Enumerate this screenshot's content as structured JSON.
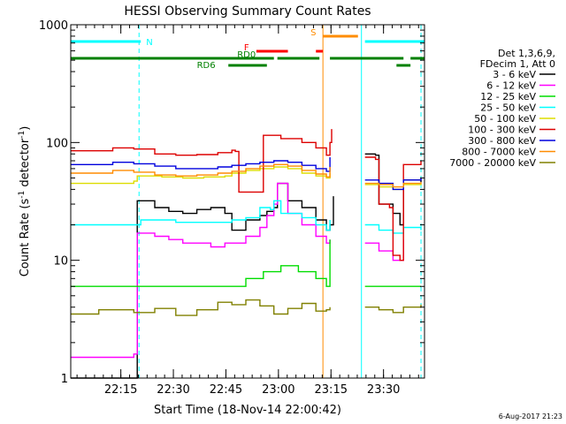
{
  "chart_data": {
    "type": "line",
    "title": "HESSI Observing Summary Count Rates",
    "xlabel": "Start Time (18-Nov-14 22:00:42)",
    "ylabel": "Count Rate (s^-1 detector^-1)",
    "ylabel_parts": {
      "a": "Count Rate (s",
      "b": "-1",
      "c": " detector",
      "d": "-1",
      "e": ")"
    },
    "y_scale": "log",
    "ylim": [
      1,
      1000
    ],
    "xlim_minutes": [
      0,
      101
    ],
    "x_tick_minutes": [
      14.3,
      29.3,
      44.3,
      59.3,
      74.3,
      89.3
    ],
    "x_tick_labels": [
      "22:15",
      "22:30",
      "22:45",
      "23:00",
      "23:15",
      "23:30"
    ],
    "y_tick_values": [
      1,
      10,
      100,
      1000
    ],
    "y_tick_labels": [
      "1",
      "10",
      "100",
      "1000"
    ],
    "legend_header": [
      "Det 1,3,6,9,",
      "FDecim 1, Att 0"
    ],
    "series": [
      {
        "name": "3 - 6 keV",
        "color": "#000000",
        "values": [
          [
            0,
            1
          ],
          [
            18,
            1
          ],
          [
            19,
            32
          ],
          [
            24,
            28
          ],
          [
            28,
            26
          ],
          [
            32,
            25
          ],
          [
            36,
            27
          ],
          [
            40,
            28
          ],
          [
            44,
            25
          ],
          [
            46,
            18
          ],
          [
            49,
            18
          ],
          [
            50,
            22
          ],
          [
            54,
            24
          ],
          [
            56,
            26
          ],
          [
            58,
            28
          ],
          [
            59,
            45
          ],
          [
            62,
            32
          ],
          [
            66,
            28
          ],
          [
            70,
            22
          ],
          [
            73,
            18
          ],
          [
            74,
            20
          ],
          [
            75,
            35
          ]
        ]
      },
      {
        "name": "6 - 12 keV",
        "color": "#ff00ff",
        "values": [
          [
            0,
            1.5
          ],
          [
            18,
            1.6
          ],
          [
            19,
            17
          ],
          [
            24,
            16
          ],
          [
            28,
            15
          ],
          [
            32,
            14
          ],
          [
            36,
            14
          ],
          [
            40,
            13
          ],
          [
            44,
            14
          ],
          [
            46,
            14
          ],
          [
            50,
            16
          ],
          [
            54,
            19
          ],
          [
            56,
            24
          ],
          [
            58,
            30
          ],
          [
            59,
            45
          ],
          [
            62,
            25
          ],
          [
            66,
            20
          ],
          [
            70,
            16
          ],
          [
            73,
            14
          ],
          [
            74,
            15
          ]
        ]
      },
      {
        "name": "12 - 25 keV",
        "color": "#00dd00",
        "values": [
          [
            0,
            6
          ],
          [
            18,
            6
          ],
          [
            20,
            6
          ],
          [
            30,
            6
          ],
          [
            40,
            6
          ],
          [
            46,
            6
          ],
          [
            50,
            7
          ],
          [
            55,
            8
          ],
          [
            60,
            9
          ],
          [
            65,
            8
          ],
          [
            70,
            7
          ],
          [
            73,
            6
          ],
          [
            74,
            15
          ]
        ]
      },
      {
        "name": "25 - 50 keV",
        "color": "#00ffff",
        "values": [
          [
            0,
            20
          ],
          [
            18,
            20
          ],
          [
            20,
            22
          ],
          [
            30,
            21
          ],
          [
            40,
            21
          ],
          [
            46,
            22
          ],
          [
            50,
            23
          ],
          [
            54,
            28
          ],
          [
            57,
            27
          ],
          [
            58,
            32
          ],
          [
            60,
            25
          ],
          [
            66,
            23
          ],
          [
            70,
            20
          ],
          [
            73,
            18
          ],
          [
            74,
            22
          ]
        ]
      },
      {
        "name": "50 - 100 keV",
        "color": "#dddd00",
        "values": [
          [
            0,
            45
          ],
          [
            18,
            47
          ],
          [
            19,
            52
          ],
          [
            26,
            51
          ],
          [
            32,
            50
          ],
          [
            38,
            51
          ],
          [
            44,
            52
          ],
          [
            46,
            55
          ],
          [
            50,
            58
          ],
          [
            54,
            60
          ],
          [
            58,
            62
          ],
          [
            62,
            60
          ],
          [
            66,
            55
          ],
          [
            70,
            52
          ],
          [
            73,
            50
          ],
          [
            74,
            55
          ]
        ]
      },
      {
        "name": "100 - 300 keV",
        "color": "#dd0000",
        "values": [
          [
            0,
            85
          ],
          [
            12,
            90
          ],
          [
            18,
            88
          ],
          [
            24,
            80
          ],
          [
            30,
            78
          ],
          [
            36,
            79
          ],
          [
            42,
            82
          ],
          [
            46,
            86
          ],
          [
            47,
            84
          ],
          [
            48,
            38
          ],
          [
            54,
            38
          ],
          [
            55,
            115
          ],
          [
            60,
            108
          ],
          [
            66,
            100
          ],
          [
            70,
            90
          ],
          [
            73,
            78
          ],
          [
            74,
            100
          ],
          [
            74.5,
            130
          ]
        ]
      },
      {
        "name": "300 - 800 keV",
        "color": "#0000dd",
        "values": [
          [
            0,
            65
          ],
          [
            12,
            68
          ],
          [
            18,
            66
          ],
          [
            24,
            63
          ],
          [
            30,
            60
          ],
          [
            36,
            60
          ],
          [
            42,
            62
          ],
          [
            46,
            64
          ],
          [
            50,
            66
          ],
          [
            54,
            68
          ],
          [
            58,
            70
          ],
          [
            62,
            68
          ],
          [
            66,
            64
          ],
          [
            70,
            60
          ],
          [
            73,
            57
          ],
          [
            74,
            75
          ]
        ]
      },
      {
        "name": "800 - 7000 keV",
        "color": "#ff8c00",
        "values": [
          [
            0,
            55
          ],
          [
            12,
            58
          ],
          [
            18,
            56
          ],
          [
            24,
            53
          ],
          [
            30,
            52
          ],
          [
            36,
            53
          ],
          [
            42,
            55
          ],
          [
            46,
            57
          ],
          [
            50,
            60
          ],
          [
            54,
            63
          ],
          [
            58,
            65
          ],
          [
            62,
            63
          ],
          [
            66,
            58
          ],
          [
            70,
            54
          ],
          [
            73,
            51
          ],
          [
            74,
            62
          ]
        ]
      },
      {
        "name": "7000 - 20000 keV",
        "color": "#808000",
        "values": [
          [
            0,
            3.5
          ],
          [
            8,
            3.8
          ],
          [
            18,
            3.6
          ],
          [
            24,
            3.9
          ],
          [
            30,
            3.4
          ],
          [
            36,
            3.8
          ],
          [
            42,
            4.4
          ],
          [
            46,
            4.2
          ],
          [
            50,
            4.6
          ],
          [
            54,
            4.1
          ],
          [
            58,
            3.5
          ],
          [
            62,
            3.9
          ],
          [
            66,
            4.3
          ],
          [
            70,
            3.7
          ],
          [
            73,
            3.8
          ],
          [
            74,
            4.0
          ]
        ]
      }
    ],
    "series_segment2": [
      {
        "name": "3 - 6 keV",
        "values": [
          [
            84,
            80
          ],
          [
            87,
            78
          ],
          [
            88,
            30
          ],
          [
            92,
            25
          ],
          [
            94,
            20
          ],
          [
            95,
            48
          ],
          [
            100,
            46
          ]
        ]
      },
      {
        "name": "6 - 12 keV",
        "values": [
          [
            84,
            14
          ],
          [
            88,
            12
          ],
          [
            92,
            10
          ],
          [
            95,
            15
          ]
        ]
      },
      {
        "name": "12 - 25 keV",
        "values": [
          [
            84,
            6
          ],
          [
            88,
            6
          ],
          [
            92,
            6
          ],
          [
            95,
            6
          ],
          [
            100,
            6
          ]
        ]
      },
      {
        "name": "25 - 50 keV",
        "values": [
          [
            84,
            20
          ],
          [
            88,
            18
          ],
          [
            92,
            17
          ],
          [
            95,
            19
          ],
          [
            100,
            18
          ]
        ]
      },
      {
        "name": "50 - 100 keV",
        "values": [
          [
            84,
            44
          ],
          [
            88,
            42
          ],
          [
            92,
            40
          ],
          [
            95,
            44
          ],
          [
            100,
            45
          ]
        ]
      },
      {
        "name": "100 - 300 keV",
        "values": [
          [
            84,
            75
          ],
          [
            87,
            72
          ],
          [
            88,
            30
          ],
          [
            91,
            28
          ],
          [
            92,
            11
          ],
          [
            94,
            10
          ],
          [
            95,
            65
          ],
          [
            100,
            70
          ]
        ]
      },
      {
        "name": "300 - 800 keV",
        "values": [
          [
            84,
            48
          ],
          [
            88,
            45
          ],
          [
            92,
            40
          ],
          [
            95,
            48
          ],
          [
            100,
            50
          ]
        ]
      },
      {
        "name": "800 - 7000 keV",
        "values": [
          [
            84,
            45
          ],
          [
            88,
            44
          ],
          [
            92,
            42
          ],
          [
            95,
            45
          ],
          [
            100,
            46
          ]
        ]
      },
      {
        "name": "7000 - 20000 keV",
        "values": [
          [
            84,
            4
          ],
          [
            88,
            3.8
          ],
          [
            92,
            3.6
          ],
          [
            95,
            4.0
          ],
          [
            100,
            4.2
          ]
        ]
      }
    ],
    "flag_bars": [
      {
        "label": "N",
        "color": "#00ffff",
        "segments": [
          [
            0,
            20
          ],
          [
            84,
            101
          ]
        ]
      },
      {
        "label": "S",
        "color": "#ff8c00",
        "segments": [
          [
            72,
            82
          ]
        ]
      },
      {
        "label": "F",
        "color": "#ff0000",
        "segments": [
          [
            53,
            62
          ],
          [
            70,
            72
          ]
        ]
      },
      {
        "label": "RD0",
        "color": "#008000",
        "segments": [
          [
            0,
            58
          ],
          [
            59,
            71
          ],
          [
            74,
            95
          ],
          [
            97,
            101
          ]
        ]
      },
      {
        "label": "RD6",
        "color": "#008000",
        "segments": [
          [
            45,
            56
          ],
          [
            93,
            97
          ]
        ]
      }
    ],
    "vertical_lines": [
      {
        "x": 0,
        "style": "solid",
        "color": "#00ffff"
      },
      {
        "x": 19.5,
        "style": "dashed",
        "color": "#00ffff"
      },
      {
        "x": 72,
        "style": "solid",
        "color": "#ff8c00"
      },
      {
        "x": 83,
        "style": "solid",
        "color": "#00ffff"
      },
      {
        "x": 100,
        "style": "dashed",
        "color": "#00ffff"
      }
    ],
    "footer_date": "6-Aug-2017 21:23"
  }
}
